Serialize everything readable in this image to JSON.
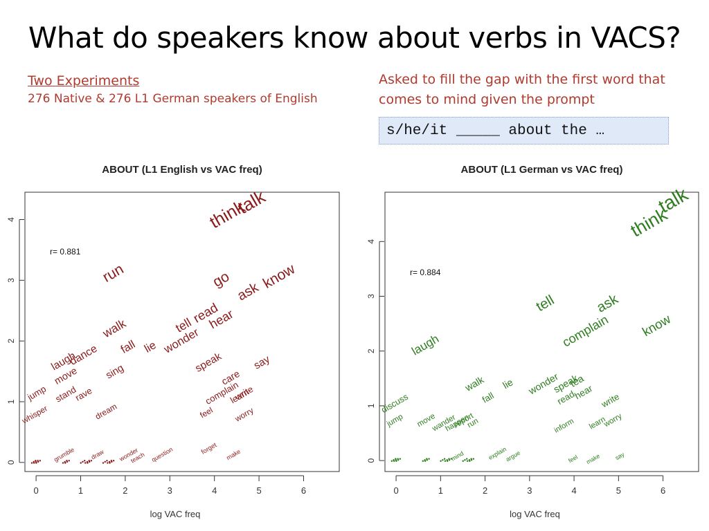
{
  "slide": {
    "title": "What do speakers know about verbs in VACS?",
    "left_heading": "Two Experiments",
    "left_subtext": "276 Native & 276 L1 German speakers of English",
    "right_text": "Asked to fill the gap with the first word that comes to mind given the prompt",
    "prompt": "s/he/it _____ about the …"
  },
  "colors": {
    "left_points": "#8b1a1a",
    "right_points": "#2e7d1f",
    "note_text": "#b03a2e"
  },
  "chart_data": [
    {
      "type": "scatter",
      "title": "ABOUT (L1 English vs VAC freq)",
      "xlabel": "log VAC freq",
      "ylabel": "",
      "xlim": [
        -0.25,
        6.8
      ],
      "ylim": [
        -0.15,
        4.45
      ],
      "xticks": [
        0,
        1,
        2,
        3,
        4,
        5,
        6
      ],
      "yticks": [
        0,
        1,
        2,
        3,
        4
      ],
      "annotation": "r= 0.881",
      "points": [
        {
          "label": "think",
          "x": 4.35,
          "y": 4.0
        },
        {
          "label": "talk",
          "x": 4.9,
          "y": 4.2
        },
        {
          "label": "know",
          "x": 5.5,
          "y": 3.0
        },
        {
          "label": "go",
          "x": 4.2,
          "y": 2.95
        },
        {
          "label": "ask",
          "x": 4.8,
          "y": 2.75
        },
        {
          "label": "read",
          "x": 3.85,
          "y": 2.4
        },
        {
          "label": "hear",
          "x": 4.2,
          "y": 2.3
        },
        {
          "label": "tell",
          "x": 3.35,
          "y": 2.2
        },
        {
          "label": "wonder",
          "x": 3.3,
          "y": 1.95
        },
        {
          "label": "lie",
          "x": 2.6,
          "y": 1.85
        },
        {
          "label": "fall",
          "x": 2.1,
          "y": 1.85
        },
        {
          "label": "run",
          "x": 1.78,
          "y": 3.05
        },
        {
          "label": "walk",
          "x": 1.8,
          "y": 2.15
        },
        {
          "label": "speak",
          "x": 3.9,
          "y": 1.6
        },
        {
          "label": "say",
          "x": 5.1,
          "y": 1.6
        },
        {
          "label": "care",
          "x": 4.4,
          "y": 1.35
        },
        {
          "label": "complain",
          "x": 4.2,
          "y": 1.1
        },
        {
          "label": "learn",
          "x": 4.6,
          "y": 1.05
        },
        {
          "label": "write",
          "x": 4.7,
          "y": 1.1
        },
        {
          "label": "feel",
          "x": 3.85,
          "y": 0.78
        },
        {
          "label": "worry",
          "x": 4.7,
          "y": 0.75
        },
        {
          "label": "laugh",
          "x": 0.65,
          "y": 1.62
        },
        {
          "label": "dance",
          "x": 1.1,
          "y": 1.72
        },
        {
          "label": "move",
          "x": 0.7,
          "y": 1.38
        },
        {
          "label": "sing",
          "x": 1.8,
          "y": 1.45
        },
        {
          "label": "jump",
          "x": 0.05,
          "y": 1.1
        },
        {
          "label": "stand",
          "x": 0.7,
          "y": 1.08
        },
        {
          "label": "rave",
          "x": 1.1,
          "y": 1.08
        },
        {
          "label": "whisper",
          "x": 0.0,
          "y": 0.75
        },
        {
          "label": "dream",
          "x": 1.6,
          "y": 0.8
        },
        {
          "label": "question",
          "x": 2.85,
          "y": 0.1
        },
        {
          "label": "forget",
          "x": 3.9,
          "y": 0.2
        },
        {
          "label": "make",
          "x": 4.45,
          "y": 0.1
        },
        {
          "label": "draw",
          "x": 1.4,
          "y": 0.1
        },
        {
          "label": "wonder",
          "x": 2.1,
          "y": 0.1
        },
        {
          "label": "teach",
          "x": 2.3,
          "y": 0.05
        },
        {
          "label": "grumble",
          "x": 0.65,
          "y": 0.1
        }
      ]
    },
    {
      "type": "scatter",
      "title": "ABOUT (L1 German vs VAC freq)",
      "xlabel": "log VAC freq",
      "ylabel": "",
      "xlim": [
        -0.25,
        6.8
      ],
      "ylim": [
        -0.2,
        4.9
      ],
      "xticks": [
        0,
        1,
        2,
        3,
        4,
        5,
        6
      ],
      "yticks": [
        0,
        1,
        2,
        3,
        4
      ],
      "annotation": "r= 0.884",
      "points": [
        {
          "label": "think",
          "x": 5.75,
          "y": 4.25
        },
        {
          "label": "talk",
          "x": 6.3,
          "y": 4.65
        },
        {
          "label": "know",
          "x": 5.9,
          "y": 2.4
        },
        {
          "label": "ask",
          "x": 4.8,
          "y": 2.8
        },
        {
          "label": "complain",
          "x": 4.3,
          "y": 2.3
        },
        {
          "label": "tell",
          "x": 3.4,
          "y": 2.8
        },
        {
          "label": "laugh",
          "x": 0.7,
          "y": 2.05
        },
        {
          "label": "wonder",
          "x": 3.35,
          "y": 1.35
        },
        {
          "label": "speak",
          "x": 3.85,
          "y": 1.35
        },
        {
          "label": "read",
          "x": 3.85,
          "y": 1.1
        },
        {
          "label": "hear",
          "x": 4.25,
          "y": 1.2
        },
        {
          "label": "tea",
          "x": 4.1,
          "y": 1.4
        },
        {
          "label": "walk",
          "x": 1.8,
          "y": 1.35
        },
        {
          "label": "lie",
          "x": 2.55,
          "y": 1.35
        },
        {
          "label": "fall",
          "x": 2.1,
          "y": 1.1
        },
        {
          "label": "write",
          "x": 4.85,
          "y": 1.05
        },
        {
          "label": "learn",
          "x": 4.55,
          "y": 0.65
        },
        {
          "label": "worry",
          "x": 4.9,
          "y": 0.7
        },
        {
          "label": "inform",
          "x": 3.8,
          "y": 0.6
        },
        {
          "label": "discuss",
          "x": 0.0,
          "y": 1.0
        },
        {
          "label": "jump",
          "x": 0.0,
          "y": 0.7
        },
        {
          "label": "move",
          "x": 0.7,
          "y": 0.7
        },
        {
          "label": "wander",
          "x": 1.1,
          "y": 0.65
        },
        {
          "label": "happen",
          "x": 1.4,
          "y": 0.65
        },
        {
          "label": "report",
          "x": 1.55,
          "y": 0.7
        },
        {
          "label": "run",
          "x": 1.75,
          "y": 0.65
        },
        {
          "label": "mind",
          "x": 1.4,
          "y": 0.05
        },
        {
          "label": "explain",
          "x": 2.3,
          "y": 0.1
        },
        {
          "label": "argue",
          "x": 2.65,
          "y": 0.05
        },
        {
          "label": "feel",
          "x": 4.0,
          "y": 0.0
        },
        {
          "label": "make",
          "x": 4.45,
          "y": 0.0
        },
        {
          "label": "say",
          "x": 5.05,
          "y": 0.05
        }
      ]
    }
  ]
}
